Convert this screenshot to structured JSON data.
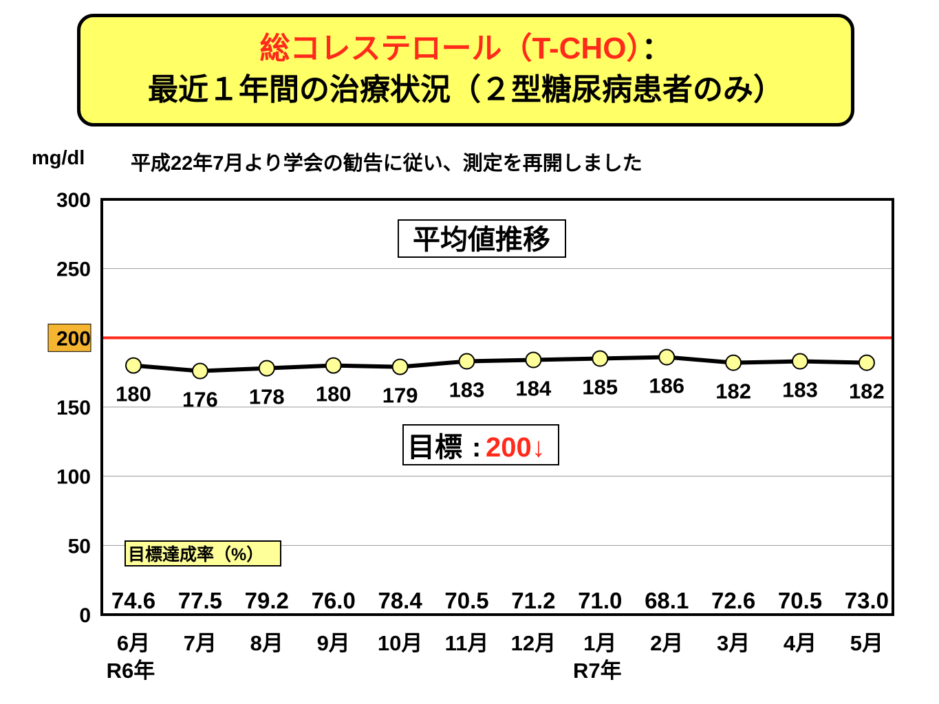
{
  "title": {
    "line1_red": "総コレステロール（T-CHO）",
    "line1_black": "：",
    "line2": "最近１年間の治療状況（２型糖尿病患者のみ）"
  },
  "unit_label": "mg/dl",
  "note": "平成22年7月より学会の勧告に従い、測定を再開しました",
  "colors": {
    "title_bg": "#ffff66",
    "title_red": "#ff2a1a",
    "target_line": "#ff2a1a",
    "marker_fill": "#ffff99",
    "highlight_tick_bg": "#f5b531",
    "rate_label_bg": "#ffff99"
  },
  "chart_data": {
    "type": "line",
    "title": "平均値推移",
    "categories": [
      "6月",
      "7月",
      "8月",
      "9月",
      "10月",
      "11月",
      "12月",
      "1月",
      "2月",
      "3月",
      "4月",
      "5月"
    ],
    "year_labels": [
      {
        "index": 0,
        "label": "R6年"
      },
      {
        "index": 7,
        "label": "R7年"
      }
    ],
    "series": [
      {
        "values": [
          180,
          176,
          178,
          180,
          179,
          183,
          184,
          185,
          186,
          182,
          183,
          182
        ]
      }
    ],
    "ylim": [
      0,
      300
    ],
    "yticks": [
      0,
      50,
      100,
      150,
      200,
      250,
      300
    ],
    "highlighted_tick": 200,
    "target": {
      "value": 200,
      "label_prefix": "目標",
      "label_sep": ":",
      "label_value": "200↓"
    },
    "achievement_rate": {
      "label": "目標達成率（%）",
      "values": [
        "74.6",
        "77.5",
        "79.2",
        "76.0",
        "78.4",
        "70.5",
        "71.2",
        "71.0",
        "68.1",
        "72.6",
        "70.5",
        "73.0"
      ]
    },
    "grid": true
  }
}
